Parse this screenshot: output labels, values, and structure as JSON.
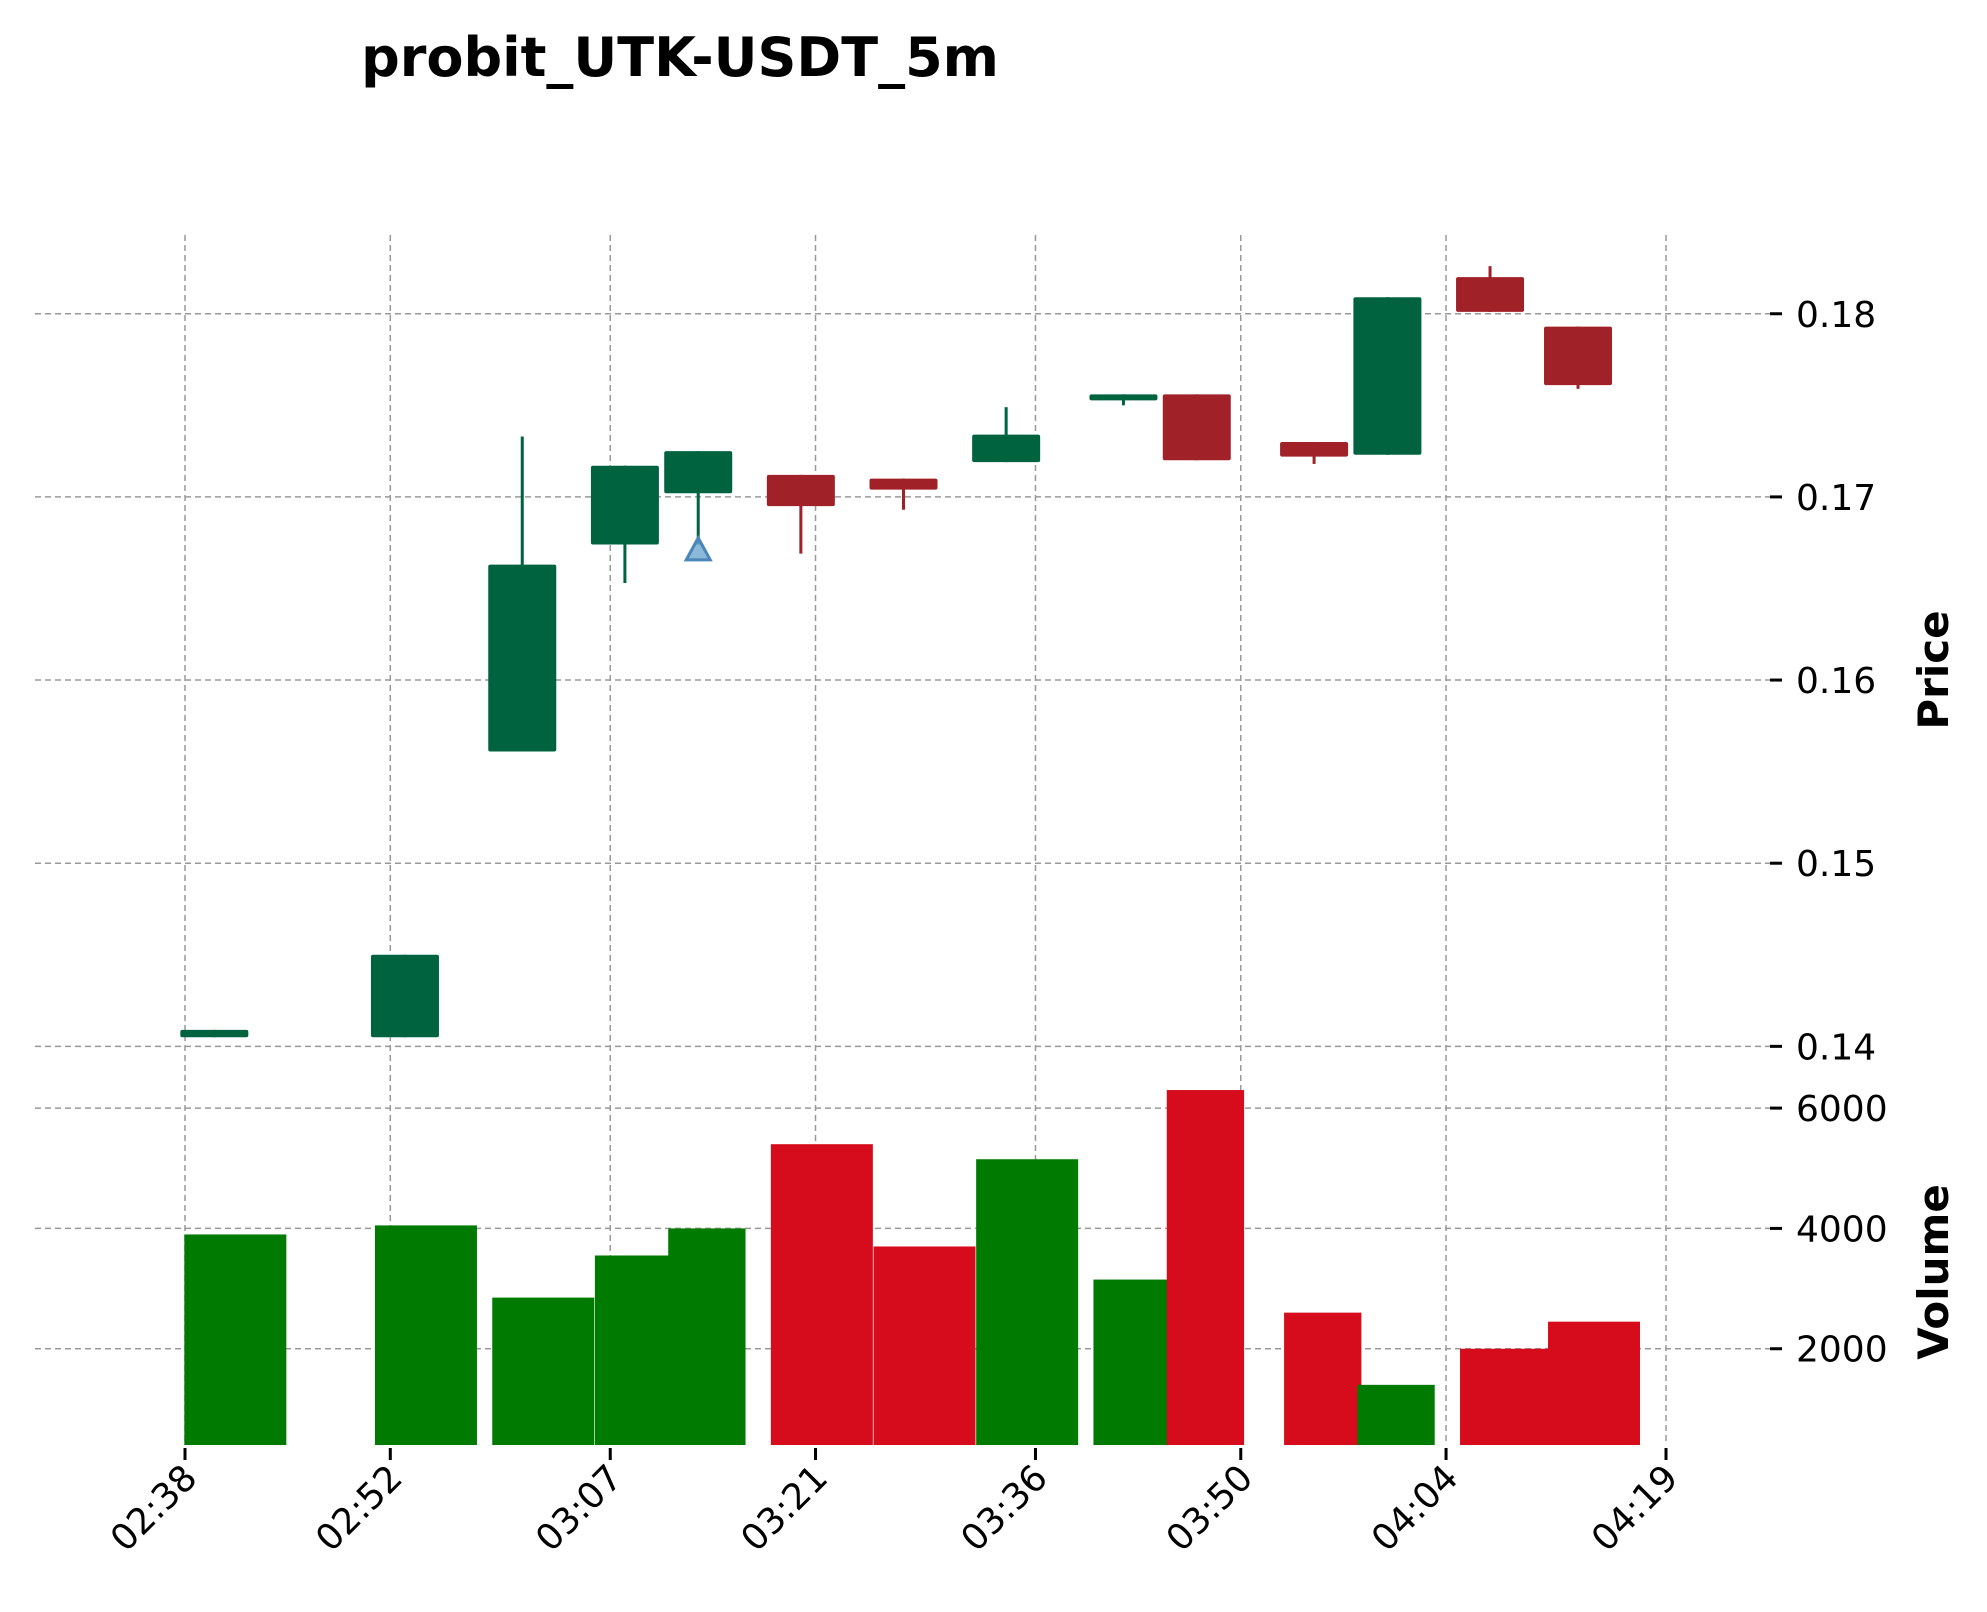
{
  "chart_data": {
    "type": "candlestick",
    "title": "probit_UTK-USDT_5m",
    "price_ylabel": "Price",
    "volume_ylabel": "Volume",
    "x_tick_labels": [
      "02:38",
      "02:52",
      "03:07",
      "03:21",
      "03:36",
      "03:50",
      "04:04",
      "04:19"
    ],
    "price_ticks": [
      "0.14",
      "0.15",
      "0.16",
      "0.17",
      "0.18"
    ],
    "volume_ticks": [
      "2000",
      "4000",
      "6000"
    ],
    "price_ylim": [
      0.1386,
      0.1843
    ],
    "volume_ylim": [
      400,
      6600
    ],
    "up_color": "#006340",
    "down_color": "#a02128",
    "volume_up_color": "#007a00",
    "volume_down_color": "#d60c1c",
    "marker_color": "#6fa6d0",
    "candles": [
      {
        "time": "02:40",
        "open": 0.1405,
        "high": 0.1409,
        "low": 0.1405,
        "close": 0.1409,
        "volume": 3900
      },
      {
        "time": "02:53",
        "open": 0.1405,
        "high": 0.145,
        "low": 0.1405,
        "close": 0.145,
        "volume": 4050
      },
      {
        "time": "03:01",
        "open": 0.1561,
        "high": 0.1733,
        "low": 0.1561,
        "close": 0.1663,
        "volume": 2850
      },
      {
        "time": "03:08",
        "open": 0.1674,
        "high": 0.1717,
        "low": 0.1653,
        "close": 0.1717,
        "volume": 3550
      },
      {
        "time": "03:13",
        "open": 0.1702,
        "high": 0.1725,
        "low": 0.1674,
        "close": 0.1725,
        "volume": 4000
      },
      {
        "time": "03:20",
        "open": 0.1712,
        "high": 0.1712,
        "low": 0.1669,
        "close": 0.1695,
        "volume": 5400
      },
      {
        "time": "03:27",
        "open": 0.171,
        "high": 0.171,
        "low": 0.1693,
        "close": 0.1704,
        "volume": 3700
      },
      {
        "time": "03:34",
        "open": 0.1719,
        "high": 0.1749,
        "low": 0.1719,
        "close": 0.1734,
        "volume": 5150
      },
      {
        "time": "03:42",
        "open": 0.1754,
        "high": 0.1756,
        "low": 0.175,
        "close": 0.1756,
        "volume": 3150
      },
      {
        "time": "03:47",
        "open": 0.1756,
        "high": 0.1756,
        "low": 0.172,
        "close": 0.172,
        "volume": 6300
      },
      {
        "time": "03:55",
        "open": 0.173,
        "high": 0.173,
        "low": 0.1718,
        "close": 0.1722,
        "volume": 2600
      },
      {
        "time": "04:00",
        "open": 0.1723,
        "high": 0.1809,
        "low": 0.1723,
        "close": 0.1809,
        "volume": 1400
      },
      {
        "time": "04:07",
        "open": 0.182,
        "high": 0.1826,
        "low": 0.1801,
        "close": 0.1801,
        "volume": 2000
      },
      {
        "time": "04:13",
        "open": 0.1793,
        "high": 0.1793,
        "low": 0.1759,
        "close": 0.1761,
        "volume": 2450
      }
    ],
    "markers": [
      {
        "time": "03:13",
        "price": 0.167,
        "shape": "triangle-up"
      }
    ]
  }
}
